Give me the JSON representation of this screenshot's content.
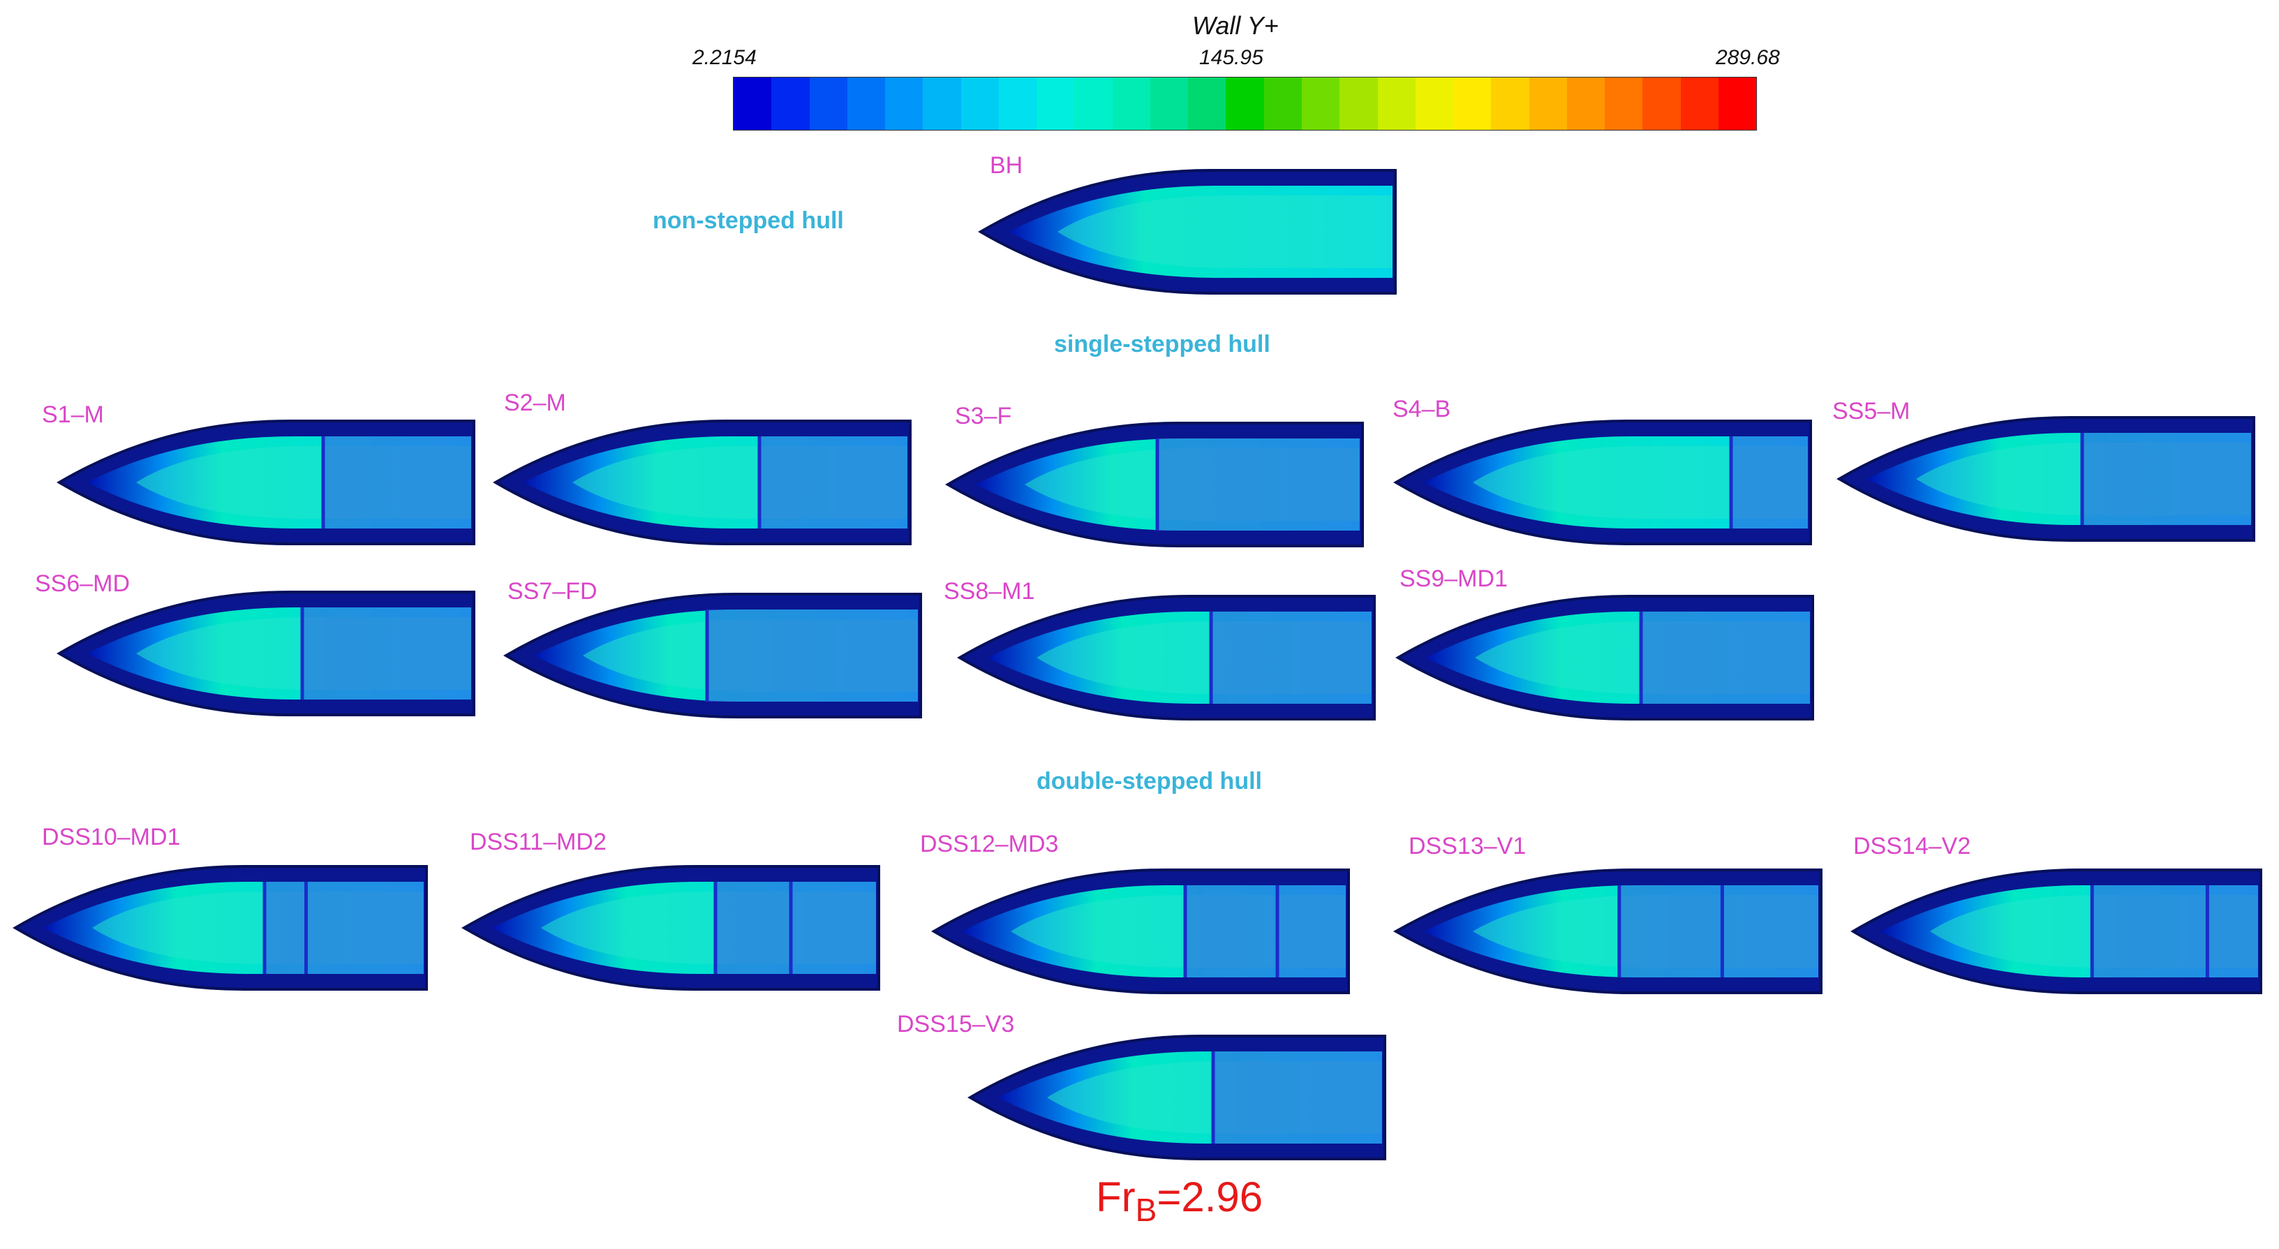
{
  "colorbar": {
    "title": "Wall Y+",
    "min_label": "2.2154",
    "mid_label": "145.95",
    "max_label": "289.68",
    "colors": [
      "#0000d8",
      "#0028f0",
      "#0050f6",
      "#0074f8",
      "#0096fa",
      "#00b4f8",
      "#00cdf4",
      "#00e0ee",
      "#00eee0",
      "#00f0cc",
      "#00ecb4",
      "#00e296",
      "#00d870",
      "#00d000",
      "#3ad000",
      "#70dc00",
      "#a4e400",
      "#ccee00",
      "#eef200",
      "#ffea00",
      "#ffd000",
      "#ffb400",
      "#ff9600",
      "#ff7600",
      "#ff5000",
      "#ff2800",
      "#ff0000"
    ]
  },
  "sections": {
    "non_stepped": "non-stepped hull",
    "single_stepped": "single-stepped hull",
    "double_stepped": "double-stepped hull"
  },
  "hulls": [
    {
      "label": "BH",
      "steps": []
    },
    {
      "label": "S1–M",
      "steps": [
        0.63
      ]
    },
    {
      "label": "S2–M",
      "steps": [
        0.63
      ]
    },
    {
      "label": "S3–F",
      "steps": [
        0.5
      ]
    },
    {
      "label": "S4–B",
      "steps": [
        0.8
      ]
    },
    {
      "label": "SS5–M",
      "steps": [
        0.58
      ]
    },
    {
      "label": "SS6–MD",
      "steps": [
        0.58
      ]
    },
    {
      "label": "SS7–FD",
      "steps": [
        0.48
      ]
    },
    {
      "label": "SS8–M1",
      "steps": [
        0.6
      ]
    },
    {
      "label": "SS9–MD1",
      "steps": [
        0.58
      ]
    },
    {
      "label": "DSS10–MD1",
      "steps": [
        0.6,
        0.7
      ]
    },
    {
      "label": "DSS11–MD2",
      "steps": [
        0.6,
        0.78
      ]
    },
    {
      "label": "DSS12–MD3",
      "steps": [
        0.6,
        0.82
      ]
    },
    {
      "label": "DSS13–V1",
      "steps": [
        0.52,
        0.76
      ]
    },
    {
      "label": "DSS14–V2",
      "steps": [
        0.58,
        0.86
      ]
    },
    {
      "label": "DSS15–V3",
      "steps": [
        0.58
      ]
    }
  ],
  "condition": {
    "prefix": "Fr",
    "subscript": "B",
    "value": "=2.96"
  }
}
